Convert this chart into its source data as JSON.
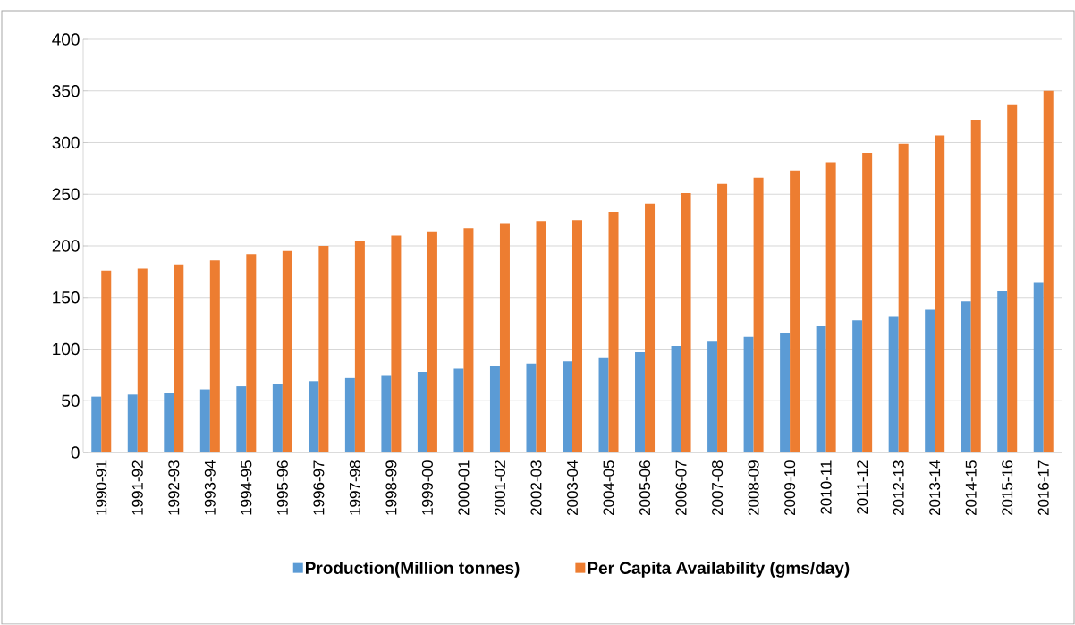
{
  "chart_data": {
    "type": "bar",
    "categories": [
      "1990-91",
      "1991-92",
      "1992-93",
      "1993-94",
      "1994-95",
      "1995-96",
      "1996-97",
      "1997-98",
      "1998-99",
      "1999-00",
      "2000-01",
      "2001-02",
      "2002-03",
      "2003-04",
      "2004-05",
      "2005-06",
      "2006-07",
      "2007-08",
      "2008-09",
      "2009-10",
      "2010-11",
      "2011-12",
      "2012-13",
      "2013-14",
      "2014-15",
      "2015-16",
      "2016-17"
    ],
    "series": [
      {
        "name": "Production(Million tonnes)",
        "color": "#5b9bd5",
        "values": [
          54,
          56,
          58,
          61,
          64,
          66,
          69,
          72,
          75,
          78,
          81,
          84,
          86,
          88,
          92,
          97,
          103,
          108,
          112,
          116,
          122,
          128,
          132,
          138,
          146,
          156,
          165
        ]
      },
      {
        "name": "Per Capita Availability (gms/day)",
        "color": "#ed7d31",
        "values": [
          176,
          178,
          182,
          186,
          192,
          195,
          200,
          205,
          210,
          214,
          217,
          222,
          224,
          225,
          233,
          241,
          251,
          260,
          266,
          273,
          281,
          290,
          299,
          307,
          322,
          337,
          350
        ]
      }
    ],
    "ylim": [
      0,
      400
    ],
    "yticks": [
      0,
      50,
      100,
      150,
      200,
      250,
      300,
      350,
      400
    ],
    "grid": "y",
    "legend": "bottom"
  }
}
